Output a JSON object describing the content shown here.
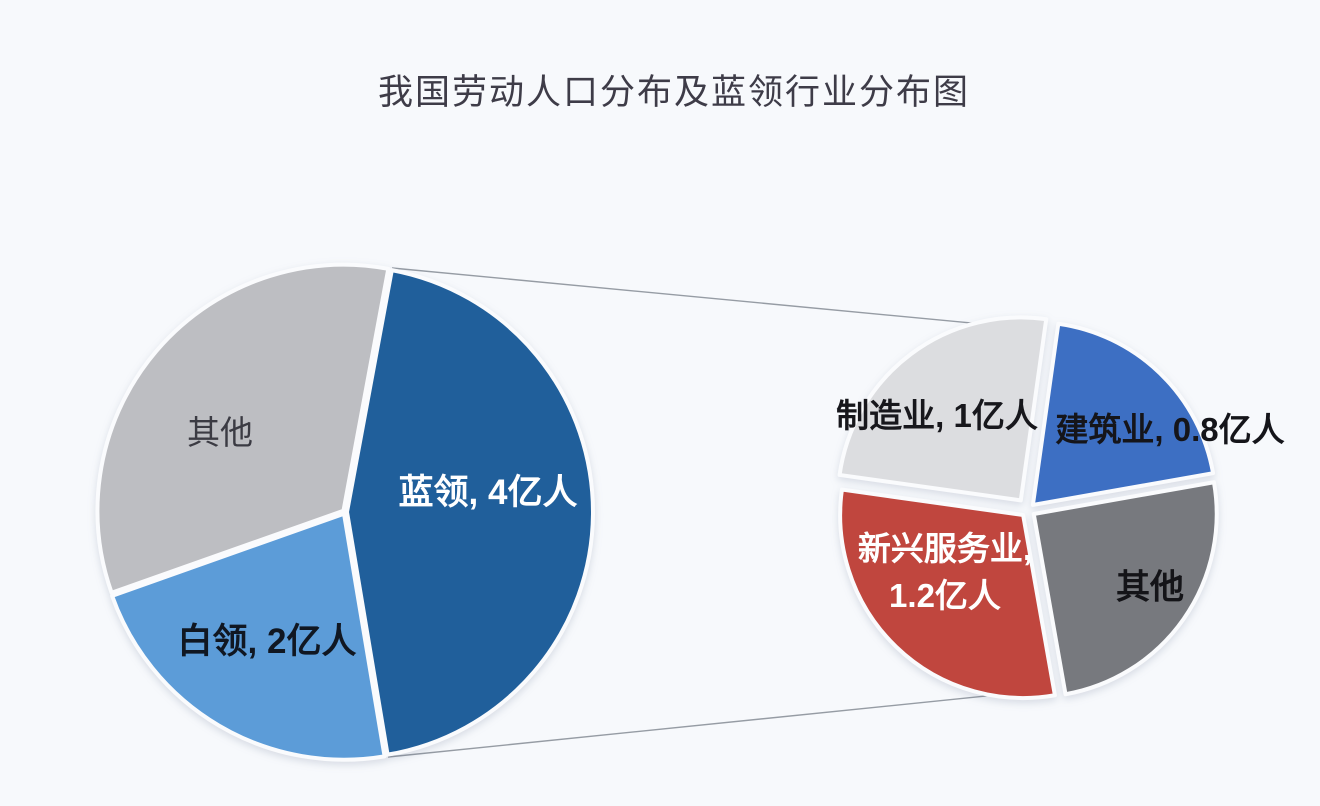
{
  "title": "我国劳动人口分布及蓝领行业分布图",
  "background_color": "#f7f9fc",
  "connector": {
    "color": "#969ca4"
  },
  "chart_data": [
    {
      "type": "pie",
      "name": "labor_population_distribution",
      "unit": "亿人",
      "total": 9,
      "start_angle_deg": 10.5,
      "direction": "clockwise",
      "slices": [
        {
          "key": "blue-collar",
          "category": "蓝领",
          "value": 4,
          "label": "蓝领, 4亿人",
          "color": "#205f9b",
          "label_color": "#ffffff"
        },
        {
          "key": "white-collar",
          "category": "白领",
          "value": 2,
          "label": "白领, 2亿人",
          "color": "#5c9cd8",
          "label_color": "#101722"
        },
        {
          "key": "other",
          "category": "其他",
          "value": 3,
          "label": "其他",
          "color": "#bdbec2",
          "label_color": "#3b3b43"
        }
      ]
    },
    {
      "type": "pie",
      "name": "blue_collar_industry_distribution",
      "unit": "亿人",
      "total": 4,
      "start_angle_deg": 8,
      "direction": "clockwise",
      "slices": [
        {
          "key": "construction",
          "category": "建筑业",
          "value": 0.8,
          "label": "建筑业, 0.8亿人",
          "color": "#3d6fc3",
          "label_color": "#15151a"
        },
        {
          "key": "other",
          "category": "其他",
          "value": 1,
          "label": "其他",
          "color": "#77797e",
          "label_color": "#141418"
        },
        {
          "key": "emerging-services",
          "category": "新兴服务业",
          "value": 1.2,
          "label": "新兴服务业,",
          "label_line2": "1.2亿人",
          "color": "#c0463e",
          "label_color": "#ffffff"
        },
        {
          "key": "manufacturing",
          "category": "制造业",
          "value": 1,
          "label": "制造业, 1亿人",
          "color": "#dcdde0",
          "label_color": "#17171c"
        }
      ]
    }
  ]
}
